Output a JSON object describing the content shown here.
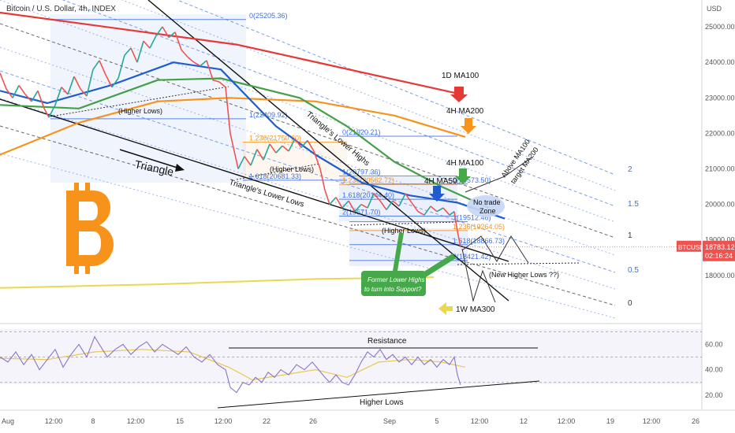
{
  "header": {
    "title": "Bitcoin / U.S. Dollar, 4h, INDEX"
  },
  "price_axis": {
    "currency": "USD",
    "ticker": "BTCUSD",
    "last_price": "18783.12",
    "countdown": "02:16:24"
  },
  "chart_data": {
    "type": "line",
    "symbol": "BTCUSD",
    "timeframe": "4h",
    "x_tick_labels": [
      "Aug",
      "12:00",
      "8",
      "12:00",
      "15",
      "12:00",
      "22",
      "26",
      "Sep",
      "5",
      "12:00",
      "12",
      "12:00",
      "19",
      "12:00",
      "26"
    ],
    "y_tick_labels": [
      "18000.00",
      "19000.00",
      "20000.00",
      "21000.00",
      "22000.00",
      "23000.00",
      "24000.00",
      "25000.00"
    ],
    "ylim": [
      16800,
      25400
    ],
    "price_path": [
      [
        0,
        23700
      ],
      [
        8,
        23250
      ],
      [
        16,
        23000
      ],
      [
        24,
        23350
      ],
      [
        32,
        23100
      ],
      [
        40,
        22900
      ],
      [
        48,
        23200
      ],
      [
        56,
        22700
      ],
      [
        62,
        22450
      ],
      [
        70,
        22800
      ],
      [
        78,
        23300
      ],
      [
        86,
        23100
      ],
      [
        94,
        23600
      ],
      [
        102,
        23250
      ],
      [
        110,
        23050
      ],
      [
        118,
        23800
      ],
      [
        126,
        24050
      ],
      [
        134,
        23650
      ],
      [
        142,
        23300
      ],
      [
        150,
        23550
      ],
      [
        158,
        24200
      ],
      [
        166,
        24400
      ],
      [
        174,
        24000
      ],
      [
        182,
        24600
      ],
      [
        190,
        24400
      ],
      [
        198,
        24750
      ],
      [
        206,
        25000
      ],
      [
        214,
        24700
      ],
      [
        222,
        24850
      ],
      [
        230,
        24350
      ],
      [
        238,
        24150
      ],
      [
        246,
        24000
      ],
      [
        254,
        23900
      ],
      [
        262,
        24050
      ],
      [
        270,
        23500
      ],
      [
        278,
        23450
      ],
      [
        286,
        23300
      ],
      [
        292,
        22000
      ],
      [
        297,
        21500
      ],
      [
        302,
        21000
      ],
      [
        310,
        21350
      ],
      [
        318,
        21100
      ],
      [
        326,
        21550
      ],
      [
        334,
        21250
      ],
      [
        342,
        21700
      ],
      [
        350,
        21450
      ],
      [
        358,
        21650
      ],
      [
        366,
        21500
      ],
      [
        374,
        21850
      ],
      [
        382,
        21600
      ],
      [
        390,
        21800
      ],
      [
        398,
        21500
      ],
      [
        406,
        21000
      ],
      [
        412,
        20400
      ],
      [
        418,
        20000
      ],
      [
        426,
        20200
      ],
      [
        434,
        19900
      ],
      [
        442,
        20100
      ],
      [
        450,
        19800
      ],
      [
        458,
        20000
      ],
      [
        466,
        19900
      ],
      [
        474,
        20300
      ],
      [
        482,
        20100
      ],
      [
        490,
        19850
      ],
      [
        498,
        20100
      ],
      [
        506,
        19950
      ],
      [
        514,
        20300
      ],
      [
        522,
        20050
      ],
      [
        530,
        19800
      ],
      [
        538,
        19700
      ],
      [
        546,
        19950
      ],
      [
        554,
        19800
      ],
      [
        562,
        19900
      ],
      [
        570,
        19700
      ],
      [
        576,
        19800
      ],
      [
        580,
        19250
      ],
      [
        584,
        18800
      ]
    ],
    "series": [
      {
        "name": "1D MA100",
        "color": "#e53935",
        "values": [
          [
            0,
            25400
          ],
          [
            300,
            24500
          ],
          [
            585,
            23100
          ]
        ]
      },
      {
        "name": "4H MA200",
        "color": "#f7931a",
        "values": [
          [
            0,
            21400
          ],
          [
            100,
            22300
          ],
          [
            200,
            22900
          ],
          [
            290,
            23000
          ],
          [
            400,
            22900
          ],
          [
            500,
            22500
          ],
          [
            590,
            21900
          ]
        ]
      },
      {
        "name": "4H MA100",
        "color": "#43a047",
        "values": [
          [
            0,
            22800
          ],
          [
            100,
            22700
          ],
          [
            200,
            23500
          ],
          [
            280,
            23550
          ],
          [
            380,
            23000
          ],
          [
            440,
            22200
          ],
          [
            500,
            21200
          ],
          [
            560,
            20500
          ],
          [
            620,
            19900
          ]
        ]
      },
      {
        "name": "4H MA50",
        "color": "#1e5ccf",
        "values": [
          [
            0,
            23200
          ],
          [
            60,
            22850
          ],
          [
            140,
            23350
          ],
          [
            220,
            24000
          ],
          [
            280,
            23800
          ],
          [
            350,
            22200
          ],
          [
            400,
            21400
          ],
          [
            460,
            20600
          ],
          [
            520,
            20250
          ],
          [
            580,
            20050
          ],
          [
            640,
            19600
          ]
        ]
      },
      {
        "name": "1W MA300",
        "color": "#e9d84d",
        "values": [
          [
            0,
            17650
          ],
          [
            200,
            17750
          ],
          [
            400,
            17900
          ],
          [
            550,
            17950
          ]
        ]
      }
    ],
    "fibonacci": [
      {
        "label": "0(25205.36)",
        "level": 25205.36
      },
      {
        "label": "1(22409.92)",
        "level": 22409.92
      },
      {
        "label": "1.236(21750.20)",
        "level": 21750.2
      },
      {
        "label": "1.618(20681.33)",
        "level": 20681.33
      },
      {
        "label": "0(21920.21)",
        "level": 21920.21
      },
      {
        "label": "1(20797.36)",
        "level": 20797.36
      },
      {
        "label": "1.236(20562.72)",
        "level": 20562.72
      },
      {
        "label": "1.618(20144.40)",
        "level": 20144.4
      },
      {
        "label": "2(19671.70)",
        "level": 19671.7
      },
      {
        "label": "0(20573.50)",
        "level": 20573.5
      },
      {
        "label": "1(19512.46)",
        "level": 19512.46
      },
      {
        "label": "1.236(19264.05)",
        "level": 19264.05
      },
      {
        "label": "1.618(18866.73)",
        "level": 18866.73
      },
      {
        "label": "2(18421.42)",
        "level": 18421.42
      }
    ],
    "channel_labels": [
      "2",
      "1.5",
      "1",
      "0.5",
      "0"
    ],
    "rsi": {
      "y_tick_labels": [
        "60.00",
        "40.00",
        "20.00"
      ],
      "ylim": [
        10,
        72
      ],
      "path": [
        [
          0,
          50
        ],
        [
          10,
          46
        ],
        [
          20,
          54
        ],
        [
          30,
          44
        ],
        [
          40,
          52
        ],
        [
          50,
          40
        ],
        [
          60,
          48
        ],
        [
          70,
          56
        ],
        [
          80,
          42
        ],
        [
          90,
          52
        ],
        [
          100,
          60
        ],
        [
          110,
          50
        ],
        [
          120,
          66
        ],
        [
          128,
          58
        ],
        [
          136,
          50
        ],
        [
          146,
          56
        ],
        [
          156,
          60
        ],
        [
          166,
          52
        ],
        [
          176,
          58
        ],
        [
          186,
          62
        ],
        [
          196,
          54
        ],
        [
          206,
          60
        ],
        [
          216,
          56
        ],
        [
          226,
          52
        ],
        [
          236,
          58
        ],
        [
          246,
          50
        ],
        [
          256,
          46
        ],
        [
          266,
          52
        ],
        [
          276,
          44
        ],
        [
          286,
          40
        ],
        [
          292,
          26
        ],
        [
          300,
          22
        ],
        [
          308,
          30
        ],
        [
          316,
          28
        ],
        [
          324,
          34
        ],
        [
          332,
          30
        ],
        [
          340,
          38
        ],
        [
          348,
          34
        ],
        [
          356,
          40
        ],
        [
          366,
          36
        ],
        [
          376,
          44
        ],
        [
          386,
          40
        ],
        [
          396,
          46
        ],
        [
          404,
          40
        ],
        [
          412,
          34
        ],
        [
          418,
          30
        ],
        [
          426,
          36
        ],
        [
          434,
          30
        ],
        [
          442,
          28
        ],
        [
          450,
          36
        ],
        [
          458,
          46
        ],
        [
          466,
          54
        ],
        [
          474,
          50
        ],
        [
          482,
          56
        ],
        [
          490,
          48
        ],
        [
          498,
          52
        ],
        [
          506,
          46
        ],
        [
          514,
          50
        ],
        [
          522,
          44
        ],
        [
          530,
          50
        ],
        [
          538,
          44
        ],
        [
          546,
          48
        ],
        [
          554,
          42
        ],
        [
          562,
          48
        ],
        [
          570,
          44
        ],
        [
          576,
          50
        ],
        [
          580,
          36
        ],
        [
          584,
          28
        ]
      ],
      "ma_path": [
        [
          0,
          49
        ],
        [
          60,
          48
        ],
        [
          120,
          54
        ],
        [
          180,
          56
        ],
        [
          240,
          54
        ],
        [
          290,
          42
        ],
        [
          320,
          32
        ],
        [
          360,
          36
        ],
        [
          400,
          40
        ],
        [
          440,
          34
        ],
        [
          480,
          46
        ],
        [
          520,
          48
        ],
        [
          560,
          46
        ],
        [
          590,
          42
        ]
      ],
      "levels": [
        70,
        50,
        30
      ]
    }
  },
  "annotations": {
    "higher_lows_top": "(Higher Lows)",
    "higher_lows_mid": "(Higher Lows)",
    "higher_lows_fib": "(Higher Lows)",
    "triangle": "Triangle",
    "triangle_lower_highs": "Triangle's Lower Highs",
    "triangle_lower_lows": "Triangle's Lower Lows",
    "label_1d_ma100": "1D MA100",
    "label_4h_ma200": "4H MA200",
    "label_4h_ma100": "4H MA100",
    "label_4h_ma50": "4H MA50",
    "no_trade_line1": "No trade",
    "no_trade_line2": "Zone",
    "above_ma_line1": "Above MA100",
    "above_ma_line2": "target MA200",
    "former_highs_line1": "Former Lower Highs",
    "former_highs_line2": "to turn into Support?",
    "new_higher_lows": "(New Higher Lows ??)",
    "label_1w_ma300": "1W MA300",
    "rsi_resistance": "Resistance",
    "rsi_higher_lows": "Higher Lows"
  },
  "colors": {
    "bull": "#26a69a",
    "bear": "#ef5350",
    "fib_blue": "#3d6fe0",
    "fib_orange": "#f7931a",
    "rsi": "#8a74c9",
    "rsi_ma": "#e9c84d",
    "callout_green": "#46a949",
    "bitcoin_orange": "#f7931a"
  }
}
